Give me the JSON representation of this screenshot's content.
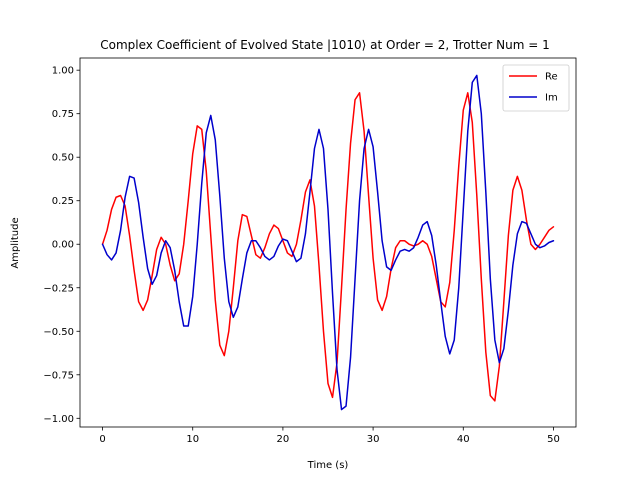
{
  "chart_data": {
    "type": "line",
    "title": "Complex Coefficient of Evolved State |1010⟩ at Order = 2, Trotter Num = 1",
    "xlabel": "Time (s)",
    "ylabel": "Amplitude",
    "xlim": [
      -2.5,
      52.5
    ],
    "ylim": [
      -1.05,
      1.07
    ],
    "xticks": [
      0,
      10,
      20,
      30,
      40,
      50
    ],
    "yticks": [
      -1.0,
      -0.75,
      -0.5,
      -0.25,
      0.0,
      0.25,
      0.5,
      0.75,
      1.0
    ],
    "xtick_labels": [
      "0",
      "10",
      "20",
      "30",
      "40",
      "50"
    ],
    "ytick_labels": [
      "−1.00",
      "−0.75",
      "−0.50",
      "−0.25",
      "0.00",
      "0.25",
      "0.50",
      "0.75",
      "1.00"
    ],
    "grid": false,
    "legend_position": "top-right",
    "series": [
      {
        "name": "Re",
        "color": "#ff0000",
        "points": [
          [
            0,
            0
          ],
          [
            0.5,
            0.08
          ],
          [
            1,
            0.2
          ],
          [
            1.5,
            0.27
          ],
          [
            2,
            0.28
          ],
          [
            2.5,
            0.22
          ],
          [
            3,
            0.05
          ],
          [
            3.5,
            -0.15
          ],
          [
            4,
            -0.33
          ],
          [
            4.5,
            -0.38
          ],
          [
            5,
            -0.32
          ],
          [
            5.5,
            -0.18
          ],
          [
            6,
            -0.03
          ],
          [
            6.5,
            0.04
          ],
          [
            7,
            0.0
          ],
          [
            7.5,
            -0.12
          ],
          [
            8,
            -0.21
          ],
          [
            8.5,
            -0.17
          ],
          [
            9,
            0.0
          ],
          [
            9.5,
            0.25
          ],
          [
            10,
            0.52
          ],
          [
            10.5,
            0.68
          ],
          [
            11,
            0.66
          ],
          [
            11.5,
            0.42
          ],
          [
            12,
            0.05
          ],
          [
            12.5,
            -0.32
          ],
          [
            13,
            -0.58
          ],
          [
            13.5,
            -0.64
          ],
          [
            14,
            -0.5
          ],
          [
            14.5,
            -0.25
          ],
          [
            15,
            0.02
          ],
          [
            15.5,
            0.17
          ],
          [
            16,
            0.16
          ],
          [
            16.5,
            0.05
          ],
          [
            17,
            -0.06
          ],
          [
            17.5,
            -0.08
          ],
          [
            18,
            -0.02
          ],
          [
            18.5,
            0.06
          ],
          [
            19,
            0.11
          ],
          [
            19.5,
            0.09
          ],
          [
            20,
            0.02
          ],
          [
            20.5,
            -0.05
          ],
          [
            21,
            -0.07
          ],
          [
            21.5,
            0.0
          ],
          [
            22,
            0.14
          ],
          [
            22.5,
            0.3
          ],
          [
            23,
            0.37
          ],
          [
            23.5,
            0.22
          ],
          [
            24,
            -0.12
          ],
          [
            24.5,
            -0.5
          ],
          [
            25,
            -0.8
          ],
          [
            25.5,
            -0.88
          ],
          [
            26,
            -0.68
          ],
          [
            26.5,
            -0.25
          ],
          [
            27,
            0.2
          ],
          [
            27.5,
            0.58
          ],
          [
            28,
            0.83
          ],
          [
            28.5,
            0.87
          ],
          [
            29,
            0.65
          ],
          [
            29.5,
            0.28
          ],
          [
            30,
            -0.08
          ],
          [
            30.5,
            -0.32
          ],
          [
            31,
            -0.38
          ],
          [
            31.5,
            -0.3
          ],
          [
            32,
            -0.14
          ],
          [
            32.5,
            -0.02
          ],
          [
            33,
            0.02
          ],
          [
            33.5,
            0.02
          ],
          [
            34,
            0.0
          ],
          [
            34.5,
            -0.01
          ],
          [
            35,
            0.0
          ],
          [
            35.5,
            0.02
          ],
          [
            36,
            0.0
          ],
          [
            36.5,
            -0.07
          ],
          [
            37,
            -0.2
          ],
          [
            37.5,
            -0.33
          ],
          [
            38,
            -0.36
          ],
          [
            38.5,
            -0.22
          ],
          [
            39,
            0.08
          ],
          [
            39.5,
            0.45
          ],
          [
            40,
            0.77
          ],
          [
            40.5,
            0.87
          ],
          [
            41,
            0.7
          ],
          [
            41.5,
            0.28
          ],
          [
            42,
            -0.2
          ],
          [
            42.5,
            -0.62
          ],
          [
            43,
            -0.87
          ],
          [
            43.5,
            -0.9
          ],
          [
            44,
            -0.7
          ],
          [
            44.5,
            -0.33
          ],
          [
            45,
            0.05
          ],
          [
            45.5,
            0.31
          ],
          [
            46,
            0.39
          ],
          [
            46.5,
            0.31
          ],
          [
            47,
            0.14
          ],
          [
            47.5,
            0.0
          ],
          [
            48,
            -0.03
          ],
          [
            48.5,
            0.0
          ],
          [
            49,
            0.04
          ],
          [
            49.5,
            0.08
          ],
          [
            50,
            0.1
          ]
        ]
      },
      {
        "name": "Im",
        "color": "#0000cc",
        "points": [
          [
            0,
            0
          ],
          [
            0.5,
            -0.06
          ],
          [
            1,
            -0.09
          ],
          [
            1.5,
            -0.05
          ],
          [
            2,
            0.08
          ],
          [
            2.5,
            0.27
          ],
          [
            3,
            0.39
          ],
          [
            3.5,
            0.38
          ],
          [
            4,
            0.24
          ],
          [
            4.5,
            0.04
          ],
          [
            5,
            -0.14
          ],
          [
            5.5,
            -0.23
          ],
          [
            6,
            -0.18
          ],
          [
            6.5,
            -0.05
          ],
          [
            7,
            0.02
          ],
          [
            7.5,
            -0.02
          ],
          [
            8,
            -0.15
          ],
          [
            8.5,
            -0.33
          ],
          [
            9,
            -0.47
          ],
          [
            9.5,
            -0.47
          ],
          [
            10,
            -0.3
          ],
          [
            10.5,
            0.0
          ],
          [
            11,
            0.35
          ],
          [
            11.5,
            0.64
          ],
          [
            12,
            0.74
          ],
          [
            12.5,
            0.6
          ],
          [
            13,
            0.28
          ],
          [
            13.5,
            -0.08
          ],
          [
            14,
            -0.33
          ],
          [
            14.5,
            -0.42
          ],
          [
            15,
            -0.36
          ],
          [
            15.5,
            -0.2
          ],
          [
            16,
            -0.05
          ],
          [
            16.5,
            0.02
          ],
          [
            17,
            0.02
          ],
          [
            17.5,
            -0.02
          ],
          [
            18,
            -0.07
          ],
          [
            18.5,
            -0.09
          ],
          [
            19,
            -0.07
          ],
          [
            19.5,
            -0.01
          ],
          [
            20,
            0.03
          ],
          [
            20.5,
            0.02
          ],
          [
            21,
            -0.04
          ],
          [
            21.5,
            -0.1
          ],
          [
            22,
            -0.08
          ],
          [
            22.5,
            0.06
          ],
          [
            23,
            0.3
          ],
          [
            23.5,
            0.55
          ],
          [
            24,
            0.66
          ],
          [
            24.5,
            0.55
          ],
          [
            25,
            0.2
          ],
          [
            25.5,
            -0.28
          ],
          [
            26,
            -0.72
          ],
          [
            26.5,
            -0.95
          ],
          [
            27,
            -0.93
          ],
          [
            27.5,
            -0.65
          ],
          [
            28,
            -0.2
          ],
          [
            28.5,
            0.25
          ],
          [
            29,
            0.55
          ],
          [
            29.5,
            0.66
          ],
          [
            30,
            0.56
          ],
          [
            30.5,
            0.3
          ],
          [
            31,
            0.02
          ],
          [
            31.5,
            -0.13
          ],
          [
            32,
            -0.15
          ],
          [
            32.5,
            -0.09
          ],
          [
            33,
            -0.04
          ],
          [
            33.5,
            -0.03
          ],
          [
            34,
            -0.04
          ],
          [
            34.5,
            -0.02
          ],
          [
            35,
            0.04
          ],
          [
            35.5,
            0.11
          ],
          [
            36,
            0.13
          ],
          [
            36.5,
            0.05
          ],
          [
            37,
            -0.12
          ],
          [
            37.5,
            -0.33
          ],
          [
            38,
            -0.53
          ],
          [
            38.5,
            -0.63
          ],
          [
            39,
            -0.55
          ],
          [
            39.5,
            -0.25
          ],
          [
            40,
            0.2
          ],
          [
            40.5,
            0.65
          ],
          [
            41,
            0.93
          ],
          [
            41.5,
            0.97
          ],
          [
            42,
            0.75
          ],
          [
            42.5,
            0.3
          ],
          [
            43,
            -0.2
          ],
          [
            43.5,
            -0.55
          ],
          [
            44,
            -0.68
          ],
          [
            44.5,
            -0.6
          ],
          [
            45,
            -0.38
          ],
          [
            45.5,
            -0.12
          ],
          [
            46,
            0.06
          ],
          [
            46.5,
            0.13
          ],
          [
            47,
            0.12
          ],
          [
            47.5,
            0.06
          ],
          [
            48,
            0.0
          ],
          [
            48.5,
            -0.02
          ],
          [
            49,
            -0.01
          ],
          [
            49.5,
            0.01
          ],
          [
            50,
            0.02
          ]
        ]
      }
    ]
  }
}
